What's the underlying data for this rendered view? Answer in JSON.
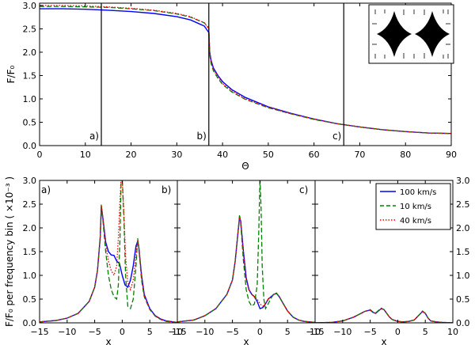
{
  "chart_data": [
    {
      "type": "line",
      "panel": "top",
      "xlabel": "Θ",
      "ylabel": "F/F₀",
      "xlim": [
        0,
        90
      ],
      "ylim": [
        0,
        3.05
      ],
      "xticks": [
        "0",
        "10",
        "20",
        "30",
        "40",
        "50",
        "60",
        "70",
        "80",
        "90"
      ],
      "yticks": [
        "0.0",
        "0.5",
        "1.0",
        "1.5",
        "2.0",
        "2.5",
        "3.0"
      ],
      "grid": false,
      "markers": [
        {
          "x": 13.5,
          "label": "a)"
        },
        {
          "x": 37.0,
          "label": "b)"
        },
        {
          "x": 66.5,
          "label": "c)"
        }
      ],
      "series": [
        {
          "name": "100 km/s",
          "style": "solid",
          "color": "#0000ff",
          "x": [
            0,
            5,
            10,
            15,
            20,
            25,
            30,
            33,
            36,
            37,
            37.2,
            37.5,
            38,
            39,
            40,
            42,
            45,
            50,
            55,
            60,
            65,
            70,
            75,
            80,
            85,
            90
          ],
          "y": [
            2.93,
            2.93,
            2.92,
            2.9,
            2.87,
            2.83,
            2.76,
            2.69,
            2.56,
            2.42,
            2.0,
            1.82,
            1.66,
            1.5,
            1.37,
            1.2,
            1.03,
            0.83,
            0.69,
            0.57,
            0.47,
            0.4,
            0.34,
            0.3,
            0.27,
            0.26
          ]
        },
        {
          "name": "10 km/s",
          "style": "dashed",
          "color": "#008000",
          "x": [
            0,
            5,
            10,
            15,
            20,
            25,
            30,
            33,
            36,
            37,
            37.2,
            37.5,
            38,
            39,
            40,
            42,
            45,
            50,
            55,
            60,
            65,
            70,
            75,
            80,
            85,
            90
          ],
          "y": [
            2.98,
            2.98,
            2.97,
            2.96,
            2.93,
            2.89,
            2.82,
            2.75,
            2.63,
            2.52,
            1.95,
            1.75,
            1.6,
            1.44,
            1.31,
            1.15,
            0.99,
            0.81,
            0.68,
            0.56,
            0.47,
            0.4,
            0.34,
            0.3,
            0.27,
            0.26
          ]
        },
        {
          "name": "40 km/s",
          "style": "dotted",
          "color": "#ff0000",
          "x": [
            0,
            5,
            10,
            15,
            20,
            25,
            30,
            33,
            36,
            37,
            37.2,
            37.5,
            38,
            39,
            40,
            42,
            45,
            50,
            55,
            60,
            65,
            70,
            75,
            80,
            85,
            90
          ],
          "y": [
            3.0,
            3.0,
            2.99,
            2.97,
            2.94,
            2.9,
            2.83,
            2.76,
            2.63,
            2.5,
            1.98,
            1.78,
            1.62,
            1.47,
            1.33,
            1.17,
            1.0,
            0.82,
            0.68,
            0.57,
            0.47,
            0.4,
            0.34,
            0.3,
            0.27,
            0.26
          ]
        }
      ]
    },
    {
      "type": "line",
      "panel": "a)",
      "xlabel": "x",
      "ylabel": "F/F₀ per frequency bin ( ×10⁻³ )",
      "xlim": [
        -15,
        10
      ],
      "ylim": [
        0,
        3.0
      ],
      "xticks": [
        "−15",
        "−10",
        "−5",
        "0",
        "5",
        "10"
      ],
      "yticks": [
        "0.0",
        "0.5",
        "1.0",
        "1.5",
        "2.0",
        "2.5",
        "3.0"
      ],
      "series": [
        {
          "name": "100 km/s",
          "style": "solid",
          "color": "#0000ff",
          "x": [
            -15,
            -12,
            -10,
            -8,
            -6,
            -5,
            -4.5,
            -4,
            -3.8,
            -3.5,
            -3,
            -2.5,
            -2,
            -1.5,
            -1,
            -0.5,
            0,
            0.5,
            1,
            1.5,
            2,
            2.5,
            2.8,
            3,
            3.5,
            4,
            5,
            6,
            7,
            8,
            10
          ],
          "y": [
            0.02,
            0.05,
            0.1,
            0.2,
            0.45,
            0.75,
            1.1,
            1.8,
            2.45,
            2.2,
            1.7,
            1.5,
            1.43,
            1.42,
            1.3,
            1.25,
            1.0,
            0.8,
            0.75,
            0.9,
            1.2,
            1.62,
            1.72,
            1.6,
            1.0,
            0.6,
            0.3,
            0.15,
            0.08,
            0.04,
            0.01
          ]
        },
        {
          "name": "10 km/s",
          "style": "dashed",
          "color": "#008000",
          "x": [
            -15,
            -12,
            -10,
            -8,
            -6,
            -5,
            -4.5,
            -4,
            -3.8,
            -3.5,
            -3,
            -2.5,
            -2,
            -1.5,
            -1,
            -0.7,
            -0.4,
            -0.2,
            0,
            0.3,
            0.6,
            1,
            1.5,
            2,
            2.5,
            2.8,
            3,
            3.5,
            4,
            5,
            6,
            7,
            8,
            10
          ],
          "y": [
            0.02,
            0.05,
            0.1,
            0.2,
            0.45,
            0.75,
            1.1,
            1.8,
            2.5,
            2.15,
            1.5,
            1.0,
            0.7,
            0.55,
            0.5,
            0.8,
            1.8,
            3.05,
            3.05,
            2.2,
            1.0,
            0.35,
            0.3,
            0.5,
            1.2,
            1.78,
            1.6,
            0.9,
            0.55,
            0.28,
            0.14,
            0.07,
            0.03,
            0.01
          ]
        },
        {
          "name": "40 km/s",
          "style": "dotted",
          "color": "#ff0000",
          "x": [
            -15,
            -12,
            -10,
            -8,
            -6,
            -5,
            -4.5,
            -4,
            -3.8,
            -3.5,
            -3,
            -2.5,
            -2,
            -1.5,
            -1,
            -0.7,
            -0.4,
            -0.2,
            0,
            0.3,
            0.6,
            1,
            1.5,
            2,
            2.5,
            2.8,
            3,
            3.5,
            4,
            5,
            6,
            7,
            8,
            10
          ],
          "y": [
            0.02,
            0.05,
            0.1,
            0.2,
            0.45,
            0.75,
            1.1,
            1.8,
            2.48,
            2.2,
            1.65,
            1.3,
            1.1,
            1.0,
            1.2,
            1.8,
            2.6,
            3.05,
            3.0,
            2.3,
            1.4,
            0.85,
            0.7,
            0.9,
            1.4,
            1.75,
            1.6,
            0.95,
            0.58,
            0.29,
            0.14,
            0.07,
            0.03,
            0.01
          ]
        }
      ]
    },
    {
      "type": "line",
      "panel": "b)",
      "xlabel": "x",
      "xlim": [
        -15,
        10
      ],
      "ylim": [
        0,
        3.0
      ],
      "xticks": [
        "−15",
        "−10",
        "−5",
        "0",
        "5",
        "10"
      ],
      "series": [
        {
          "name": "100 km/s",
          "style": "solid",
          "color": "#0000ff",
          "x": [
            -15,
            -12,
            -10,
            -8,
            -6,
            -5,
            -4.5,
            -4,
            -3.7,
            -3.5,
            -3,
            -2.5,
            -2,
            -1.5,
            -1,
            -0.5,
            0,
            0.5,
            1,
            1.5,
            2,
            2.5,
            3,
            3.5,
            4,
            5,
            6,
            7,
            8,
            10
          ],
          "y": [
            0.02,
            0.06,
            0.15,
            0.3,
            0.6,
            0.9,
            1.3,
            1.9,
            2.22,
            2.15,
            1.5,
            0.95,
            0.7,
            0.6,
            0.55,
            0.45,
            0.3,
            0.32,
            0.4,
            0.5,
            0.55,
            0.6,
            0.62,
            0.55,
            0.45,
            0.25,
            0.12,
            0.06,
            0.03,
            0.01
          ]
        },
        {
          "name": "10 km/s",
          "style": "dashed",
          "color": "#008000",
          "x": [
            -15,
            -12,
            -10,
            -8,
            -6,
            -5,
            -4.5,
            -4,
            -3.7,
            -3.5,
            -3,
            -2.5,
            -2,
            -1.5,
            -1,
            -0.5,
            -0.2,
            0,
            0.2,
            0.4,
            0.7,
            1,
            1.5,
            2,
            2.5,
            3,
            3.5,
            4,
            5,
            6,
            7,
            8,
            10
          ],
          "y": [
            0.02,
            0.06,
            0.15,
            0.3,
            0.6,
            0.9,
            1.3,
            1.9,
            2.28,
            2.1,
            1.3,
            0.7,
            0.45,
            0.35,
            0.4,
            0.8,
            2.0,
            3.05,
            2.4,
            1.2,
            0.5,
            0.3,
            0.4,
            0.52,
            0.6,
            0.63,
            0.55,
            0.45,
            0.25,
            0.12,
            0.06,
            0.03,
            0.01
          ]
        },
        {
          "name": "40 km/s",
          "style": "dotted",
          "color": "#ff0000",
          "x": [
            -15,
            -12,
            -10,
            -8,
            -6,
            -5,
            -4.5,
            -4,
            -3.7,
            -3.5,
            -3,
            -2.5,
            -2,
            -1.5,
            -1,
            -0.5,
            0,
            0.5,
            1,
            1.5,
            2,
            2.5,
            3,
            3.5,
            4,
            5,
            6,
            7,
            8,
            10
          ],
          "y": [
            0.02,
            0.06,
            0.15,
            0.3,
            0.6,
            0.9,
            1.3,
            1.9,
            2.25,
            2.15,
            1.45,
            0.9,
            0.68,
            0.6,
            0.55,
            0.5,
            0.4,
            0.35,
            0.4,
            0.5,
            0.55,
            0.6,
            0.62,
            0.55,
            0.45,
            0.25,
            0.12,
            0.06,
            0.03,
            0.01
          ]
        }
      ]
    },
    {
      "type": "line",
      "panel": "c)",
      "xlabel": "x",
      "xlim": [
        -15,
        10
      ],
      "ylim": [
        0,
        3.0
      ],
      "xticks": [
        "−15",
        "−10",
        "−5",
        "0",
        "5",
        "10"
      ],
      "y2ticks": [
        "0.0",
        "0.5",
        "1.0",
        "1.5",
        "2.0",
        "2.5",
        "3.0"
      ],
      "legend": "top-right",
      "series": [
        {
          "name": "100 km/s",
          "style": "solid",
          "color": "#0000ff",
          "x": [
            -15,
            -12,
            -10,
            -8,
            -7,
            -6,
            -5,
            -4.5,
            -4,
            -3.5,
            -3,
            -2.5,
            -2,
            -1.5,
            -1,
            0,
            1,
            2,
            3,
            4,
            4.5,
            5,
            5.5,
            6,
            7,
            8,
            10
          ],
          "y": [
            0.0,
            0.01,
            0.04,
            0.12,
            0.18,
            0.24,
            0.27,
            0.22,
            0.2,
            0.25,
            0.3,
            0.28,
            0.2,
            0.12,
            0.07,
            0.03,
            0.02,
            0.03,
            0.06,
            0.18,
            0.24,
            0.2,
            0.1,
            0.04,
            0.02,
            0.01,
            0.0
          ]
        },
        {
          "name": "10 km/s",
          "style": "dashed",
          "color": "#008000",
          "x": [
            -15,
            -12,
            -10,
            -8,
            -7,
            -6,
            -5,
            -4.5,
            -4,
            -3.5,
            -3,
            -2.5,
            -2,
            -1.5,
            -1,
            0,
            1,
            2,
            3,
            4,
            4.5,
            5,
            5.5,
            6,
            7,
            8,
            10
          ],
          "y": [
            0.0,
            0.01,
            0.04,
            0.12,
            0.18,
            0.24,
            0.28,
            0.23,
            0.21,
            0.26,
            0.31,
            0.28,
            0.2,
            0.12,
            0.07,
            0.03,
            0.02,
            0.03,
            0.06,
            0.18,
            0.25,
            0.2,
            0.1,
            0.04,
            0.02,
            0.01,
            0.0
          ]
        },
        {
          "name": "40 km/s",
          "style": "dotted",
          "color": "#ff0000",
          "x": [
            -15,
            -12,
            -10,
            -8,
            -7,
            -6,
            -5,
            -4.5,
            -4,
            -3.5,
            -3,
            -2.5,
            -2,
            -1.5,
            -1,
            0,
            1,
            2,
            3,
            4,
            4.5,
            5,
            5.5,
            6,
            7,
            8,
            10
          ],
          "y": [
            0.0,
            0.01,
            0.04,
            0.12,
            0.18,
            0.24,
            0.27,
            0.22,
            0.2,
            0.25,
            0.3,
            0.28,
            0.2,
            0.12,
            0.07,
            0.03,
            0.02,
            0.03,
            0.06,
            0.18,
            0.24,
            0.2,
            0.1,
            0.04,
            0.02,
            0.01,
            0.0
          ]
        }
      ]
    }
  ]
}
